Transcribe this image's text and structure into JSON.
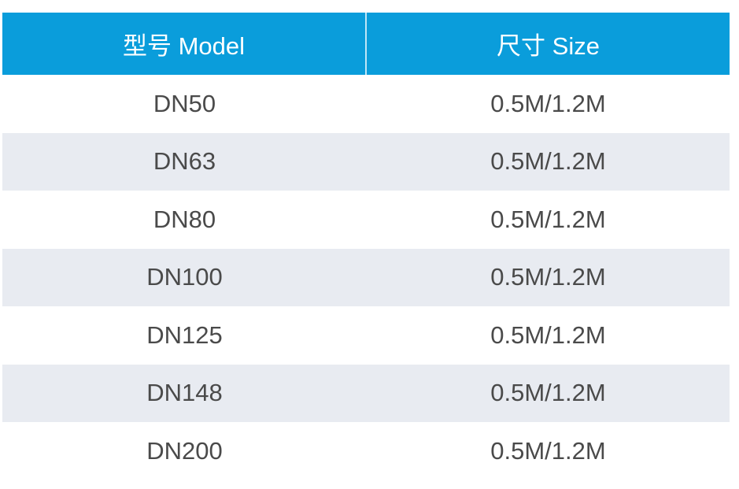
{
  "table": {
    "header": {
      "model_label": "型号 Model",
      "size_label": "尺寸 Size"
    },
    "rows": [
      {
        "model": "DN50",
        "size": "0.5M/1.2M"
      },
      {
        "model": "DN63",
        "size": "0.5M/1.2M"
      },
      {
        "model": "DN80",
        "size": "0.5M/1.2M"
      },
      {
        "model": "DN100",
        "size": "0.5M/1.2M"
      },
      {
        "model": "DN125",
        "size": "0.5M/1.2M"
      },
      {
        "model": "DN148",
        "size": "0.5M/1.2M"
      },
      {
        "model": "DN200",
        "size": "0.5M/1.2M"
      }
    ],
    "colors": {
      "header_background": "#0a9ddb",
      "header_text": "#ffffff",
      "stripe_background": "#e8ebf1",
      "body_text": "#4a4a4a"
    }
  }
}
